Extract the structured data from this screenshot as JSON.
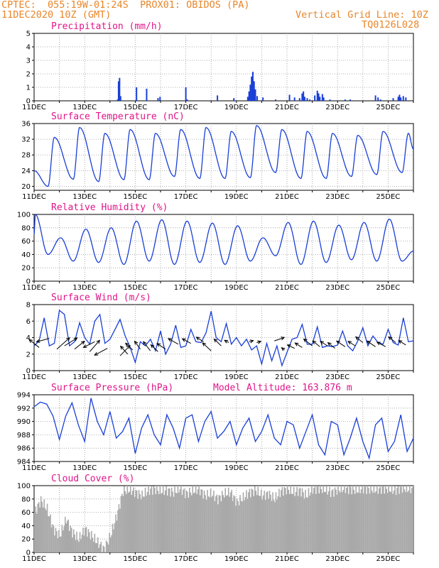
{
  "header": {
    "line1": "CPTEC:  055:19W-01:24S  PROX01: OBIDOS (PA)",
    "line2": "11DEC2020 10Z (GMT)",
    "grid_note": "Vertical Grid Line: 10Z",
    "code": "TQ0126L028"
  },
  "colors": {
    "header": "#e8862a",
    "title": "#e0158a",
    "series": "#1a3fd6",
    "cloud": "#a9a9a9"
  },
  "chart_data": [
    {
      "id": "precip",
      "type": "bar",
      "title": "Precipitation (mm/h)",
      "xlabel": "",
      "ylabel": "mm/h",
      "ylim": [
        0,
        5
      ],
      "yticks": [
        0,
        1,
        2,
        3,
        4,
        5
      ],
      "xlim": [
        0,
        15
      ],
      "x_tick_labels": [
        "11DEC",
        "13DEC",
        "15DEC",
        "17DEC",
        "19DEC",
        "21DEC",
        "23DEC",
        "25DEC"
      ],
      "points": [
        [
          3.3,
          0.1
        ],
        [
          3.34,
          1.45
        ],
        [
          3.38,
          1.7
        ],
        [
          3.42,
          0.35
        ],
        [
          4.05,
          1.0
        ],
        [
          4.45,
          0.9
        ],
        [
          4.9,
          0.2
        ],
        [
          4.98,
          0.3
        ],
        [
          6.0,
          1.0
        ],
        [
          6.05,
          0.1
        ],
        [
          7.25,
          0.4
        ],
        [
          7.9,
          0.2
        ],
        [
          8.45,
          0.3
        ],
        [
          8.5,
          0.7
        ],
        [
          8.55,
          1.2
        ],
        [
          8.6,
          1.8
        ],
        [
          8.65,
          2.15
        ],
        [
          8.7,
          1.45
        ],
        [
          8.75,
          0.85
        ],
        [
          8.82,
          0.35
        ],
        [
          9.05,
          0.25
        ],
        [
          9.55,
          0.1
        ],
        [
          10.1,
          0.45
        ],
        [
          10.3,
          0.25
        ],
        [
          10.5,
          0.2
        ],
        [
          10.6,
          0.55
        ],
        [
          10.65,
          0.7
        ],
        [
          10.7,
          0.3
        ],
        [
          10.8,
          0.2
        ],
        [
          10.9,
          0.1
        ],
        [
          11.1,
          0.4
        ],
        [
          11.2,
          0.75
        ],
        [
          11.25,
          0.55
        ],
        [
          11.3,
          0.3
        ],
        [
          11.4,
          0.5
        ],
        [
          11.45,
          0.25
        ],
        [
          11.7,
          0.1
        ],
        [
          12.3,
          0.1
        ],
        [
          12.5,
          0.1
        ],
        [
          13.5,
          0.4
        ],
        [
          13.6,
          0.25
        ],
        [
          13.7,
          0.1
        ],
        [
          14.2,
          0.2
        ],
        [
          14.4,
          0.3
        ],
        [
          14.45,
          0.45
        ],
        [
          14.5,
          0.25
        ],
        [
          14.6,
          0.35
        ],
        [
          14.7,
          0.25
        ]
      ]
    },
    {
      "id": "temp",
      "type": "line",
      "title": "Surface Temperature (nC)",
      "ylabel": "nC",
      "ylim": [
        19,
        36
      ],
      "yticks": [
        20,
        24,
        28,
        32,
        36
      ],
      "xlim": [
        0,
        15
      ],
      "x_tick_labels": [
        "11DEC",
        "13DEC",
        "15DEC",
        "17DEC",
        "19DEC",
        "21DEC",
        "23DEC",
        "25DEC"
      ],
      "min_max": [
        [
          20.0,
          32.5
        ],
        [
          21.8,
          35.0
        ],
        [
          21.2,
          33.5
        ],
        [
          21.7,
          34.5
        ],
        [
          21.7,
          33.5
        ],
        [
          22.5,
          34.5
        ],
        [
          22.0,
          35.0
        ],
        [
          22.0,
          34.0
        ],
        [
          22.2,
          35.5
        ],
        [
          23.5,
          34.5
        ],
        [
          22.0,
          34.0
        ],
        [
          22.0,
          33.5
        ],
        [
          22.5,
          33.0
        ],
        [
          23.0,
          34.0
        ],
        [
          23.5,
          33.5
        ]
      ],
      "end_value": 29.5
    },
    {
      "id": "rh",
      "type": "line",
      "title": "Relative Humidity (%)",
      "ylabel": "%",
      "ylim": [
        0,
        100
      ],
      "yticks": [
        0,
        20,
        40,
        60,
        80,
        100
      ],
      "xlim": [
        0,
        15
      ],
      "x_tick_labels": [
        "11DEC",
        "13DEC",
        "15DEC",
        "17DEC",
        "19DEC",
        "21DEC",
        "23DEC",
        "25DEC"
      ],
      "max_min": [
        [
          100,
          40
        ],
        [
          65,
          30
        ],
        [
          78,
          28
        ],
        [
          80,
          25
        ],
        [
          90,
          30
        ],
        [
          92,
          25
        ],
        [
          90,
          28
        ],
        [
          87,
          25
        ],
        [
          83,
          30
        ],
        [
          65,
          38
        ],
        [
          88,
          25
        ],
        [
          90,
          28
        ],
        [
          84,
          32
        ],
        [
          88,
          30
        ],
        [
          93,
          30
        ]
      ],
      "end_value": 45
    },
    {
      "id": "wind",
      "type": "line",
      "title": "Surface Wind (m/s)",
      "ylabel": "m/s",
      "ylim": [
        0,
        8
      ],
      "yticks": [
        0,
        2,
        4,
        6,
        8
      ],
      "xlim": [
        0,
        15
      ],
      "x_tick_labels": [
        "11DEC",
        "13DEC",
        "15DEC",
        "17DEC",
        "19DEC",
        "21DEC",
        "23DEC",
        "25DEC"
      ],
      "x": [
        0.0,
        0.2,
        0.4,
        0.6,
        0.8,
        1.0,
        1.2,
        1.4,
        1.6,
        1.8,
        2.0,
        2.2,
        2.4,
        2.6,
        2.8,
        3.0,
        3.2,
        3.4,
        3.6,
        3.8,
        4.0,
        4.2,
        4.4,
        4.6,
        4.8,
        5.0,
        5.2,
        5.4,
        5.6,
        5.8,
        6.0,
        6.2,
        6.4,
        6.6,
        6.8,
        7.0,
        7.2,
        7.4,
        7.6,
        7.8,
        8.0,
        8.2,
        8.4,
        8.6,
        8.8,
        9.0,
        9.2,
        9.4,
        9.6,
        9.8,
        10.0,
        10.2,
        10.4,
        10.6,
        10.8,
        11.0,
        11.2,
        11.4,
        11.6,
        11.8,
        12.0,
        12.2,
        12.4,
        12.6,
        12.8,
        13.0,
        13.2,
        13.4,
        13.6,
        13.8,
        14.0,
        14.2,
        14.4,
        14.6,
        14.8,
        15.0
      ],
      "values": [
        3.0,
        3.6,
        6.4,
        3.0,
        3.3,
        7.3,
        6.8,
        3.0,
        3.5,
        5.8,
        4.0,
        3.2,
        6.0,
        6.8,
        3.3,
        3.8,
        5.0,
        6.2,
        4.2,
        2.8,
        1.0,
        3.5,
        3.0,
        3.8,
        2.4,
        4.8,
        2.0,
        3.2,
        5.5,
        2.8,
        3.0,
        5.0,
        3.5,
        3.4,
        4.6,
        7.2,
        4.0,
        3.5,
        5.7,
        3.2,
        4.0,
        3.0,
        3.8,
        2.5,
        3.0,
        0.8,
        3.3,
        1.2,
        3.0,
        0.6,
        2.2,
        3.8,
        4.0,
        5.6,
        3.2,
        3.2,
        5.3,
        2.8,
        3.0,
        2.9,
        3.1,
        4.8,
        3.0,
        2.4,
        3.6,
        5.2,
        3.0,
        4.2,
        3.4,
        3.2,
        5.0,
        3.4,
        3.1,
        6.4,
        3.5,
        3.6
      ],
      "arrows": [
        [
          0.2,
          2.8,
          -0.7,
          0.7
        ],
        [
          0.6,
          3.9,
          -0.9,
          -0.3
        ],
        [
          0.9,
          2.6,
          0.9,
          1.0
        ],
        [
          1.2,
          3.0,
          0.9,
          0.7
        ],
        [
          1.6,
          2.6,
          0.7,
          0.7
        ],
        [
          2.2,
          2.3,
          0.7,
          1.0
        ],
        [
          2.4,
          3.5,
          -0.8,
          -0.5
        ],
        [
          2.9,
          2.7,
          -0.9,
          -0.6
        ],
        [
          3.4,
          1.8,
          0.7,
          0.9
        ],
        [
          3.7,
          2.0,
          -0.5,
          0.7
        ],
        [
          3.9,
          2.5,
          -0.5,
          0.6
        ],
        [
          4.2,
          2.6,
          -0.4,
          0.7
        ],
        [
          4.6,
          2.4,
          -0.5,
          0.8
        ],
        [
          4.9,
          2.3,
          -0.5,
          0.6
        ],
        [
          5.2,
          2.6,
          -0.6,
          0.5
        ],
        [
          5.7,
          3.2,
          -0.7,
          0.5
        ],
        [
          6.2,
          3.3,
          -0.6,
          0.4
        ],
        [
          6.7,
          3.5,
          -0.5,
          0.4
        ],
        [
          7.0,
          2.4,
          -0.6,
          0.7
        ],
        [
          7.4,
          3.0,
          -0.5,
          0.6
        ],
        [
          7.7,
          3.4,
          -0.3,
          0.2
        ],
        [
          8.5,
          3.5,
          0.3,
          0.1
        ],
        [
          8.8,
          3.4,
          0.3,
          0.1
        ],
        [
          9.5,
          3.6,
          0.7,
          0.3
        ],
        [
          9.9,
          2.5,
          -0.2,
          0.2
        ],
        [
          10.3,
          2.7,
          -0.5,
          0.3
        ],
        [
          10.6,
          2.8,
          -0.5,
          0.4
        ],
        [
          11.0,
          3.0,
          -0.6,
          0.6
        ],
        [
          11.3,
          2.9,
          -0.5,
          0.5
        ],
        [
          11.6,
          3.0,
          -0.5,
          0.4
        ],
        [
          11.9,
          2.7,
          -0.5,
          0.5
        ],
        [
          12.3,
          2.9,
          -0.6,
          0.5
        ],
        [
          12.7,
          3.0,
          -0.5,
          0.4
        ],
        [
          13.0,
          3.4,
          -0.5,
          0.5
        ],
        [
          13.5,
          2.9,
          -0.6,
          0.5
        ],
        [
          13.9,
          2.9,
          -0.6,
          0.4
        ],
        [
          14.3,
          3.4,
          -0.5,
          0.5
        ],
        [
          14.7,
          3.1,
          -0.5,
          0.4
        ]
      ]
    },
    {
      "id": "pressure",
      "type": "line",
      "title": "Surface Pressure (hPa)",
      "annotation": "Model Altitude: 163.876 m",
      "ylabel": "hPa",
      "ylim": [
        984,
        994
      ],
      "yticks": [
        984,
        986,
        988,
        990,
        992,
        994
      ],
      "xlim": [
        0,
        15
      ],
      "x_tick_labels": [
        "11DEC",
        "13DEC",
        "15DEC",
        "17DEC",
        "19DEC",
        "21DEC",
        "23DEC",
        "25DEC"
      ],
      "x": [
        0.0,
        0.25,
        0.5,
        0.75,
        1.0,
        1.25,
        1.5,
        1.75,
        2.0,
        2.25,
        2.5,
        2.75,
        3.0,
        3.25,
        3.5,
        3.75,
        4.0,
        4.25,
        4.5,
        4.75,
        5.0,
        5.25,
        5.5,
        5.75,
        6.0,
        6.25,
        6.5,
        6.75,
        7.0,
        7.25,
        7.5,
        7.75,
        8.0,
        8.25,
        8.5,
        8.75,
        9.0,
        9.25,
        9.5,
        9.75,
        10.0,
        10.25,
        10.5,
        10.75,
        11.0,
        11.25,
        11.5,
        11.75,
        12.0,
        12.25,
        12.5,
        12.75,
        13.0,
        13.25,
        13.5,
        13.75,
        14.0,
        14.25,
        14.5,
        14.75,
        15.0
      ],
      "values": [
        992.2,
        992.9,
        992.6,
        990.8,
        987.3,
        990.8,
        992.8,
        989.5,
        987.0,
        993.5,
        990.0,
        988.0,
        991.5,
        987.5,
        988.5,
        990.5,
        985.2,
        989.0,
        991.0,
        988.0,
        986.5,
        991.0,
        989.0,
        986.0,
        990.5,
        991.0,
        987.0,
        990.0,
        991.5,
        987.5,
        988.5,
        990.0,
        986.5,
        989.0,
        990.5,
        987.0,
        988.5,
        991.0,
        987.5,
        986.5,
        990.0,
        989.5,
        986.0,
        988.5,
        991.0,
        986.5,
        985.0,
        990.0,
        989.5,
        985.0,
        987.5,
        990.5,
        987.0,
        984.5,
        989.5,
        990.5,
        985.5,
        987.0,
        991.0,
        985.5,
        987.5
      ]
    },
    {
      "id": "cloud",
      "type": "bar",
      "title": "Cloud Cover (%)",
      "ylabel": "%",
      "ylim": [
        0,
        100
      ],
      "yticks": [
        0,
        20,
        40,
        60,
        80,
        100
      ],
      "xlim": [
        0,
        15
      ],
      "x_tick_labels": [
        "11DEC",
        "13DEC",
        "15DEC",
        "17DEC",
        "19DEC",
        "21DEC",
        "23DEC",
        "25DEC"
      ],
      "x": [
        0.0,
        0.25,
        0.5,
        0.75,
        1.0,
        1.25,
        1.5,
        1.75,
        2.0,
        2.25,
        2.5,
        2.75,
        3.0,
        3.25,
        3.5,
        3.75,
        4.0,
        4.25,
        4.5,
        4.75,
        5.0,
        5.25,
        5.5,
        5.75,
        6.0,
        6.25,
        6.5,
        6.75,
        7.0,
        7.25,
        7.5,
        7.75,
        8.0,
        8.25,
        8.5,
        8.75,
        9.0,
        9.25,
        9.5,
        9.75,
        10.0,
        10.25,
        10.5,
        10.75,
        11.0,
        11.25,
        11.5,
        11.75,
        12.0,
        12.25,
        12.5,
        12.75,
        13.0,
        13.25,
        13.5,
        13.75,
        14.0,
        14.25,
        14.5,
        14.75,
        15.0
      ],
      "values": [
        60,
        78,
        65,
        35,
        25,
        50,
        30,
        20,
        35,
        25,
        15,
        5,
        25,
        55,
        92,
        94,
        90,
        85,
        93,
        95,
        92,
        93,
        90,
        96,
        88,
        92,
        95,
        85,
        88,
        80,
        88,
        90,
        75,
        82,
        90,
        93,
        85,
        88,
        80,
        92,
        95,
        90,
        93,
        85,
        95,
        96,
        94,
        90,
        94,
        96,
        95,
        93,
        96,
        95,
        94,
        96,
        95,
        93,
        97,
        95,
        96
      ]
    }
  ]
}
